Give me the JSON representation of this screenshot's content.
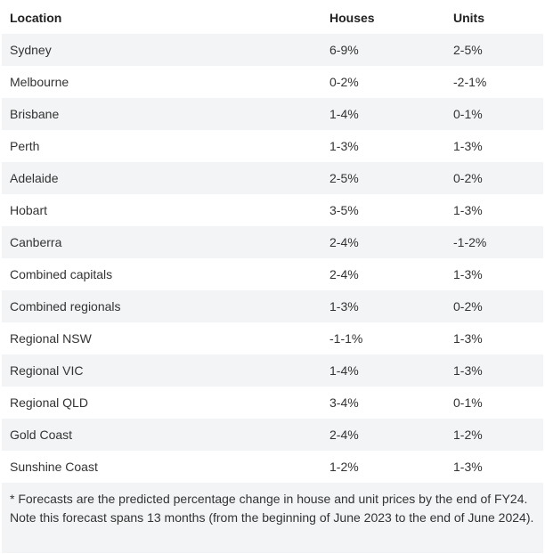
{
  "table": {
    "headers": [
      "Location",
      "Houses",
      "Units"
    ],
    "rows": [
      [
        "Sydney",
        "6-9%",
        "2-5%"
      ],
      [
        "Melbourne",
        "0-2%",
        "-2-1%"
      ],
      [
        "Brisbane",
        "1-4%",
        "0-1%"
      ],
      [
        "Perth",
        "1-3%",
        "1-3%"
      ],
      [
        "Adelaide",
        "2-5%",
        "0-2%"
      ],
      [
        "Hobart",
        "3-5%",
        "1-3%"
      ],
      [
        "Canberra",
        "2-4%",
        "-1-2%"
      ],
      [
        "Combined capitals",
        "2-4%",
        "1-3%"
      ],
      [
        "Combined regionals",
        "1-3%",
        "0-2%"
      ],
      [
        "Regional NSW",
        "-1-1%",
        "1-3%"
      ],
      [
        "Regional VIC",
        "1-4%",
        "1-3%"
      ],
      [
        "Regional QLD",
        "3-4%",
        "0-1%"
      ],
      [
        "Gold Coast",
        "2-4%",
        "1-2%"
      ],
      [
        "Sunshine Coast",
        "1-2%",
        "1-3%"
      ]
    ]
  },
  "footnote": "* Forecasts are the predicted percentage change in house and unit prices by the end of FY24. Note this forecast spans 13 months (from the beginning of June 2023 to the end of June 2024).",
  "colors": {
    "stripe": "#f2f4f6",
    "text": "#333333"
  }
}
